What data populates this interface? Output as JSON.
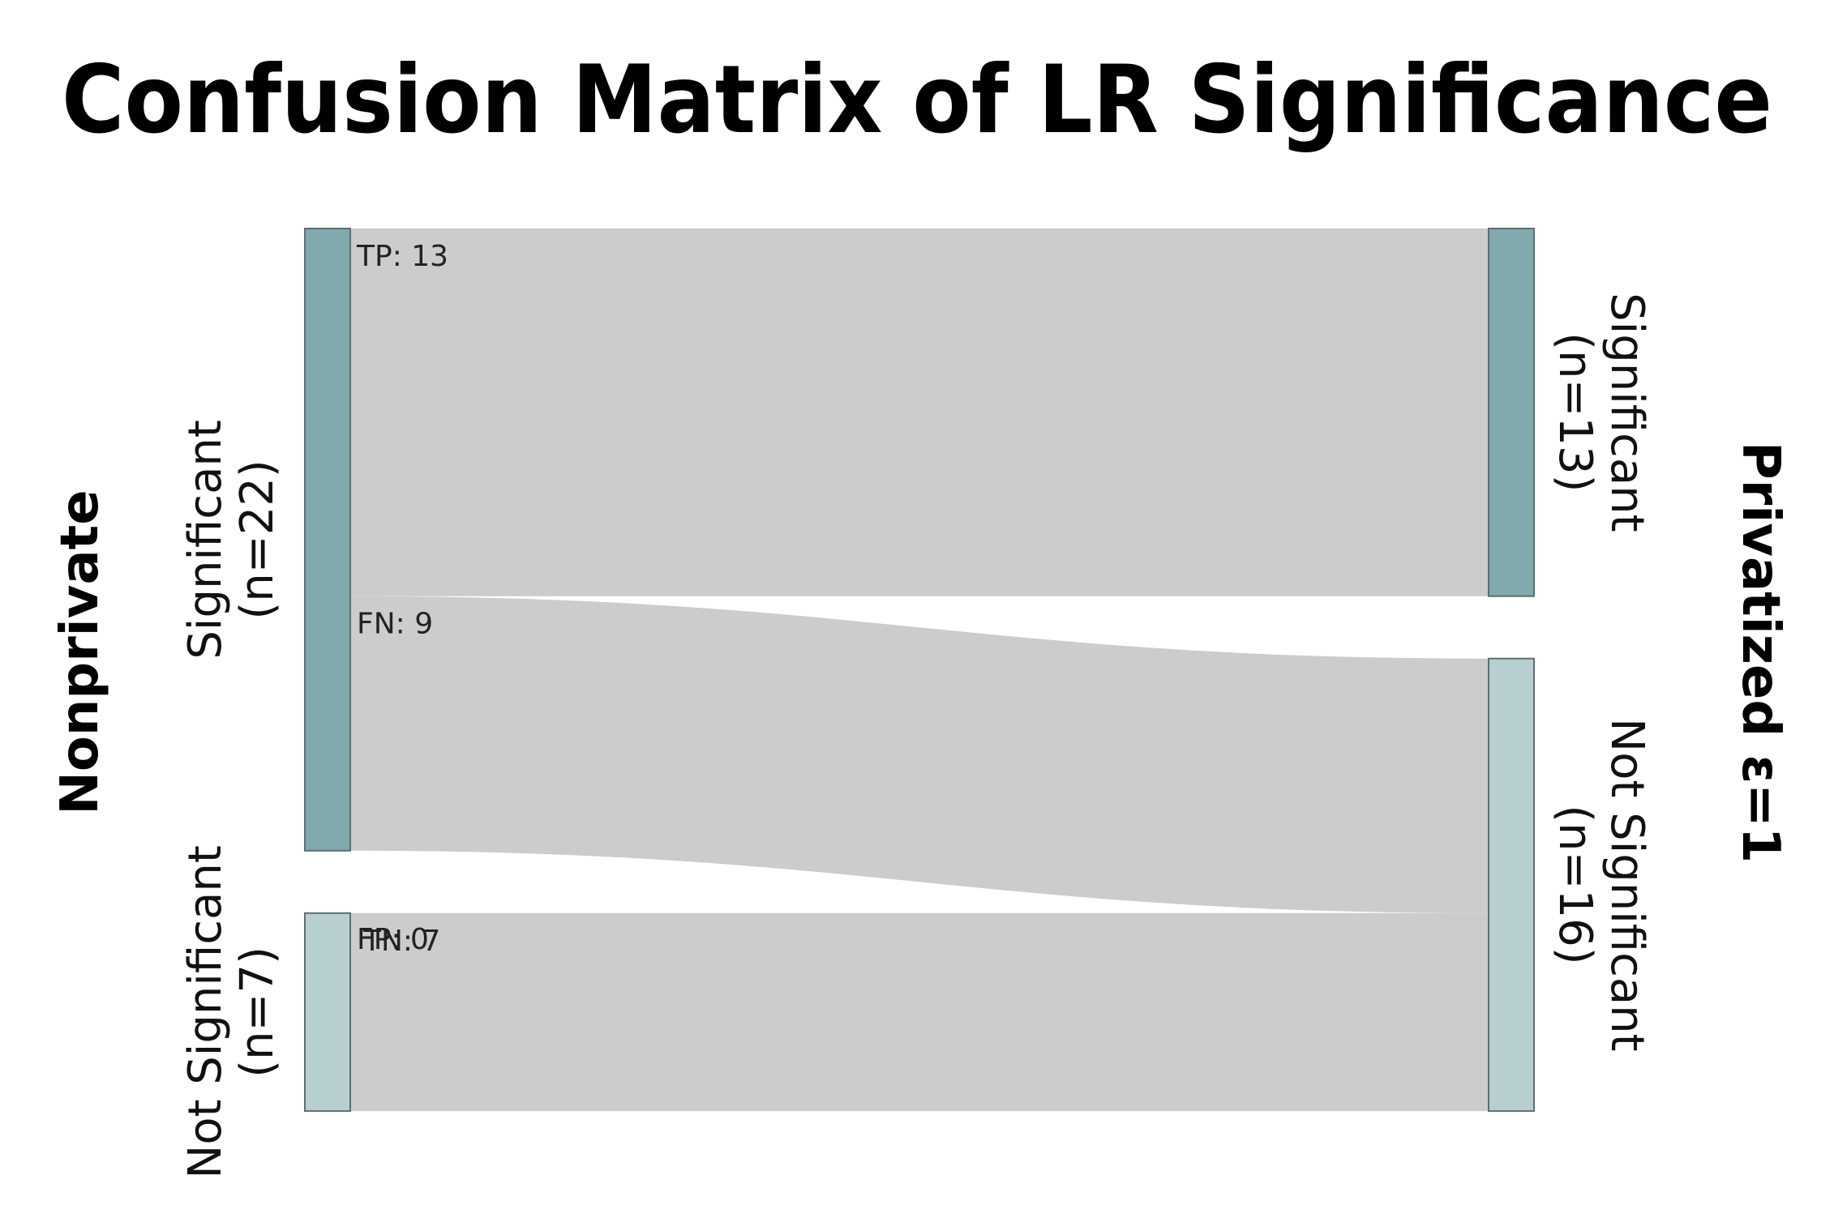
{
  "title": "Confusion Matrix of LR Significance",
  "left_axis_title": "Nonprivate",
  "right_axis_title": "Privatized ε=1",
  "chart_data": {
    "type": "sankey",
    "title": "Confusion Matrix of LR Significance",
    "left_nodes": [
      {
        "id": "np_sig",
        "line1": "Significant",
        "line2": "(n=22)",
        "value": 22,
        "color": "#80aaad"
      },
      {
        "id": "np_not",
        "line1": "Not Significant",
        "line2": "(n=7)",
        "value": 7,
        "color": "#b7cfd1"
      }
    ],
    "right_nodes": [
      {
        "id": "p_sig",
        "line1": "Significant",
        "line2": "(n=13)",
        "value": 13,
        "color": "#80aaad"
      },
      {
        "id": "p_not",
        "line1": "Not Significant",
        "line2": "(n=16)",
        "value": 16,
        "color": "#b7cfd1"
      }
    ],
    "flows": [
      {
        "source": "np_sig",
        "target": "p_sig",
        "label": "TP: 13",
        "value": 13
      },
      {
        "source": "np_sig",
        "target": "p_not",
        "label": "FN: 9",
        "value": 9
      },
      {
        "source": "np_not",
        "target": "p_sig",
        "label": "FP: 0",
        "value": 0
      },
      {
        "source": "np_not",
        "target": "p_not",
        "label": "TN: 7",
        "value": 7
      }
    ],
    "flow_color": "#cccccc"
  }
}
